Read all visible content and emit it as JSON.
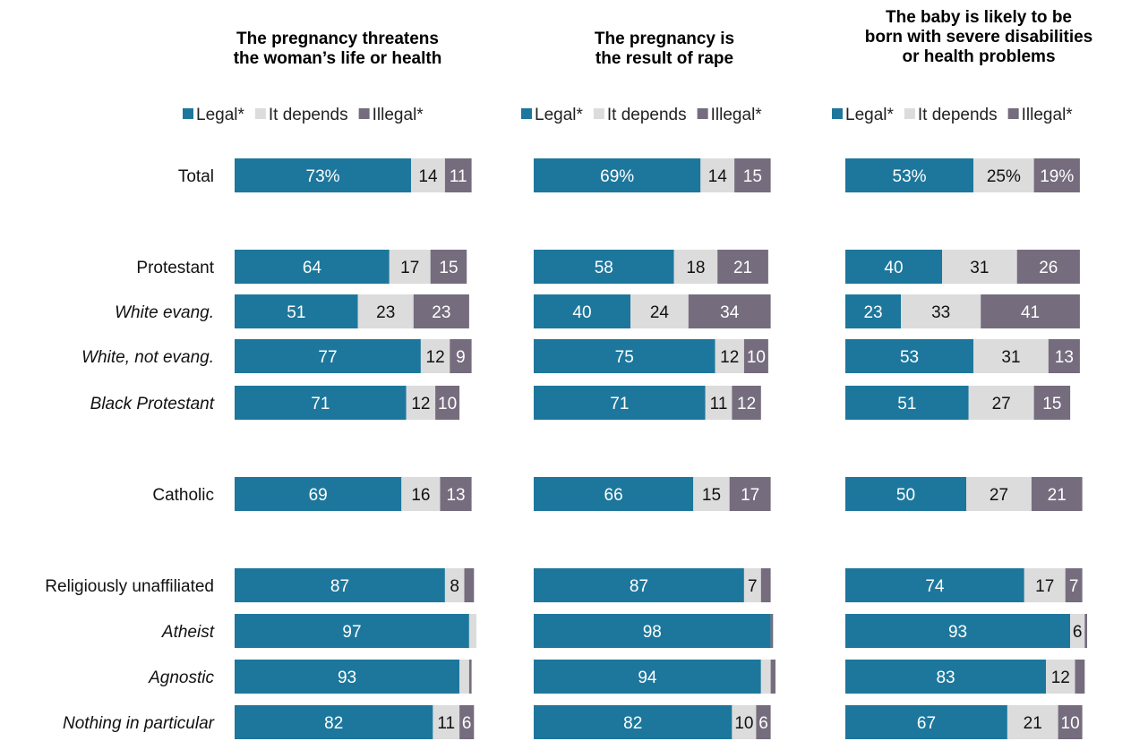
{
  "colors": {
    "legal": "#1d779c",
    "depends": "#dcdcdc",
    "illegal": "#756c7d"
  },
  "legend": [
    "Legal*",
    "It depends",
    "Illegal*"
  ],
  "rows": [
    {
      "label": "Total",
      "italic": false
    },
    {
      "label": "Protestant",
      "italic": false
    },
    {
      "label": "White evang.",
      "italic": true
    },
    {
      "label": "White, not evang.",
      "italic": true
    },
    {
      "label": "Black Protestant",
      "italic": true
    },
    {
      "label": "Catholic",
      "italic": false
    },
    {
      "label": "Religiously unaffiliated",
      "italic": false
    },
    {
      "label": "Atheist",
      "italic": true
    },
    {
      "label": "Agnostic",
      "italic": true
    },
    {
      "label": "Nothing in particular",
      "italic": true
    }
  ],
  "chart_data": [
    {
      "type": "bar",
      "stacked": true,
      "orientation": "horizontal",
      "title": [
        "The pregnancy threatens",
        "the woman’s life or health"
      ],
      "categories": [
        "Total",
        "Protestant",
        "White evang.",
        "White, not evang.",
        "Black Protestant",
        "Catholic",
        "Religiously unaffiliated",
        "Atheist",
        "Agnostic",
        "Nothing in particular"
      ],
      "series": [
        {
          "name": "Legal*",
          "values": [
            73,
            64,
            51,
            77,
            71,
            69,
            87,
            97,
            93,
            82
          ],
          "labels": [
            "73%",
            "64",
            "51",
            "77",
            "71",
            "69",
            "87",
            "97",
            "93",
            "82"
          ]
        },
        {
          "name": "It depends",
          "values": [
            14,
            17,
            23,
            12,
            12,
            16,
            8,
            3,
            4,
            11
          ],
          "labels": [
            "14",
            "17",
            "23",
            "12",
            "12",
            "16",
            "8",
            "",
            "",
            "11"
          ]
        },
        {
          "name": "Illegal*",
          "values": [
            11,
            15,
            23,
            9,
            10,
            13,
            4,
            0,
            1,
            6
          ],
          "labels": [
            "11",
            "15",
            "23",
            "9",
            "10",
            "13",
            "",
            "",
            "",
            "6"
          ]
        }
      ]
    },
    {
      "type": "bar",
      "stacked": true,
      "orientation": "horizontal",
      "title": [
        "The pregnancy is",
        "the result of rape"
      ],
      "categories": [
        "Total",
        "Protestant",
        "White evang.",
        "White, not evang.",
        "Black Protestant",
        "Catholic",
        "Religiously unaffiliated",
        "Atheist",
        "Agnostic",
        "Nothing in particular"
      ],
      "series": [
        {
          "name": "Legal*",
          "values": [
            69,
            58,
            40,
            75,
            71,
            66,
            87,
            98,
            94,
            82
          ],
          "labels": [
            "69%",
            "58",
            "40",
            "75",
            "71",
            "66",
            "87",
            "98",
            "94",
            "82"
          ]
        },
        {
          "name": "It depends",
          "values": [
            14,
            18,
            24,
            12,
            11,
            15,
            7,
            0,
            4,
            10
          ],
          "labels": [
            "14",
            "18",
            "24",
            "12",
            "11",
            "15",
            "7",
            "",
            "",
            "10"
          ]
        },
        {
          "name": "Illegal*",
          "values": [
            15,
            21,
            34,
            10,
            12,
            17,
            4,
            1,
            2,
            6
          ],
          "labels": [
            "15",
            "21",
            "34",
            "10",
            "12",
            "17",
            "",
            "",
            "",
            "6"
          ]
        }
      ]
    },
    {
      "type": "bar",
      "stacked": true,
      "orientation": "horizontal",
      "title": [
        "The baby is likely to be",
        "born with severe disabilities",
        "or health problems"
      ],
      "categories": [
        "Total",
        "Protestant",
        "White evang.",
        "White, not evang.",
        "Black Protestant",
        "Catholic",
        "Religiously unaffiliated",
        "Atheist",
        "Agnostic",
        "Nothing in particular"
      ],
      "series": [
        {
          "name": "Legal*",
          "values": [
            53,
            40,
            23,
            53,
            51,
            50,
            74,
            93,
            83,
            67
          ],
          "labels": [
            "53%",
            "40",
            "23",
            "53",
            "51",
            "50",
            "74",
            "93",
            "83",
            "67"
          ]
        },
        {
          "name": "It depends",
          "values": [
            25,
            31,
            33,
            31,
            27,
            27,
            17,
            6,
            12,
            21
          ],
          "labels": [
            "25%",
            "31",
            "33",
            "31",
            "27",
            "27",
            "17",
            "6",
            "12",
            "21"
          ]
        },
        {
          "name": "Illegal*",
          "values": [
            19,
            26,
            41,
            13,
            15,
            21,
            7,
            1,
            4,
            10
          ],
          "labels": [
            "19%",
            "26",
            "41",
            "13",
            "15",
            "21",
            "7",
            "",
            "",
            "10"
          ]
        }
      ]
    }
  ]
}
